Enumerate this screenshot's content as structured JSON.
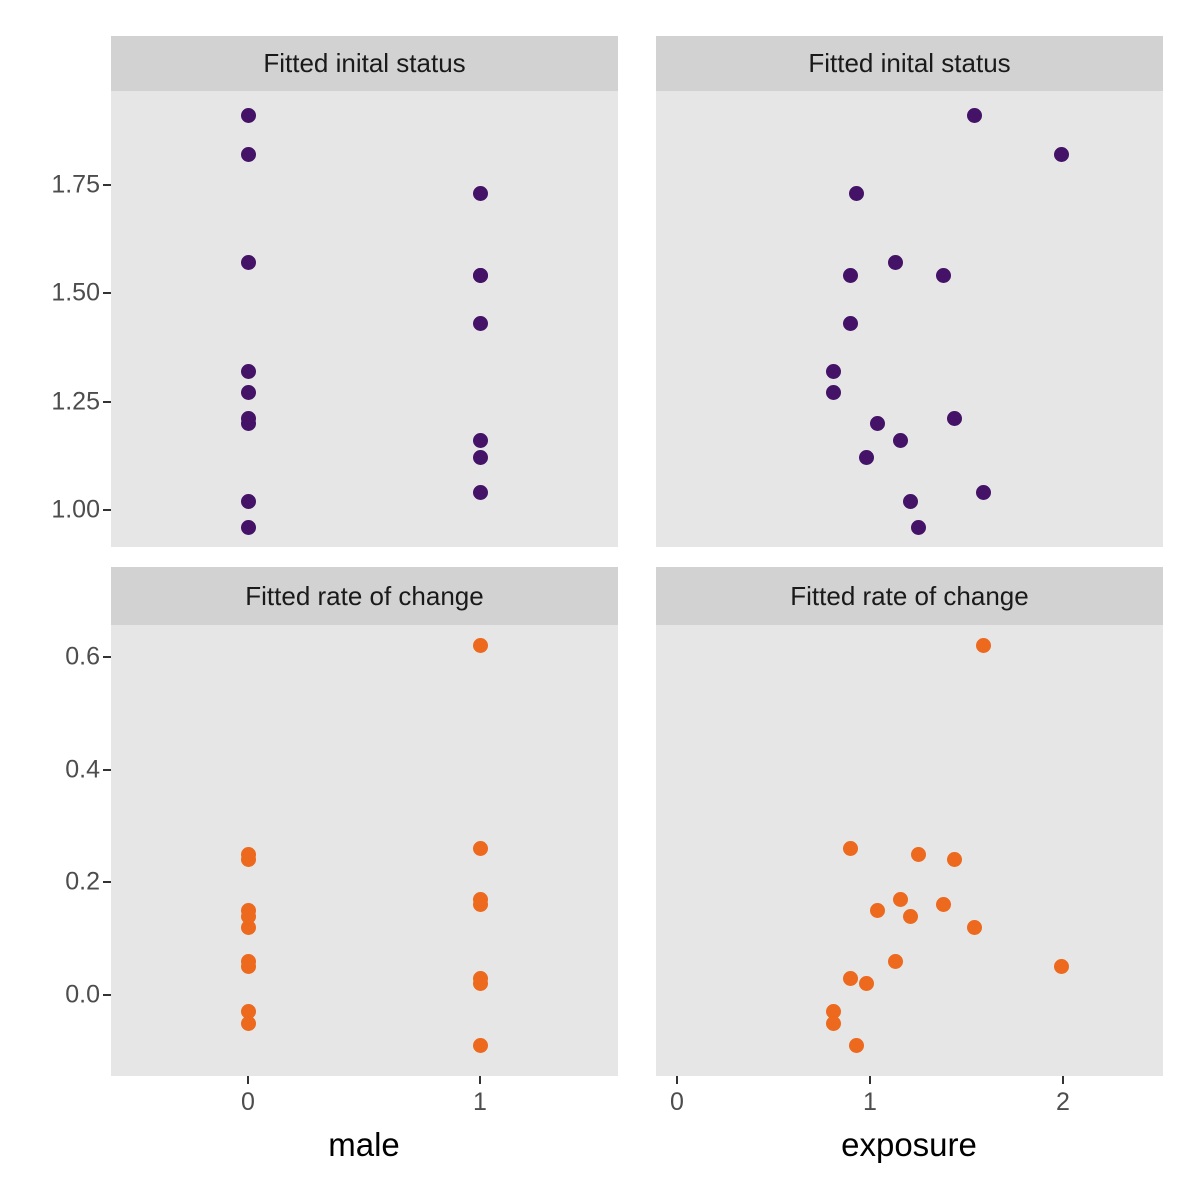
{
  "figure": {
    "background": "#ffffff",
    "panel_background": "#e6e6e6",
    "strip_background": "#d2d2d2",
    "tick_label_color": "#4d4d4d",
    "init_point_color": "#441266",
    "rate_point_color": "#EC691E"
  },
  "chart_data": {
    "type": "scatter",
    "layout": "2x2 facet grid, shared y per row, shared x per column, grid off, no legend",
    "facets": [
      {
        "id": "init-vs-male",
        "title": "Fitted inital status",
        "x_field": "male",
        "y_field": "init_status",
        "color": "#441266",
        "x_axis": "male",
        "y_axis": "init"
      },
      {
        "id": "init-vs-exposure",
        "title": "Fitted inital status",
        "x_field": "exposure",
        "y_field": "init_status",
        "color": "#441266",
        "x_axis": "exposure",
        "y_axis": "init"
      },
      {
        "id": "rate-vs-male",
        "title": "Fitted rate of change",
        "x_field": "male",
        "y_field": "rate",
        "color": "#EC691E",
        "x_axis": "male",
        "y_axis": "rate"
      },
      {
        "id": "rate-vs-exposure",
        "title": "Fitted rate of change",
        "x_field": "exposure",
        "y_field": "rate",
        "color": "#EC691E",
        "x_axis": "exposure",
        "y_axis": "rate"
      }
    ],
    "subjects": [
      {
        "male": 0,
        "exposure": 1.54,
        "init_status": 1.91,
        "rate": 0.12
      },
      {
        "male": 0,
        "exposure": 1.99,
        "init_status": 1.82,
        "rate": 0.05
      },
      {
        "male": 1,
        "exposure": 0.93,
        "init_status": 1.73,
        "rate": -0.09
      },
      {
        "male": 0,
        "exposure": 1.13,
        "init_status": 1.57,
        "rate": 0.06
      },
      {
        "male": 1,
        "exposure": 0.9,
        "init_status": 1.54,
        "rate": 0.03
      },
      {
        "male": 1,
        "exposure": 1.38,
        "init_status": 1.54,
        "rate": 0.16
      },
      {
        "male": 1,
        "exposure": 0.9,
        "init_status": 1.43,
        "rate": 0.26
      },
      {
        "male": 0,
        "exposure": 0.81,
        "init_status": 1.32,
        "rate": -0.03
      },
      {
        "male": 0,
        "exposure": 0.81,
        "init_status": 1.27,
        "rate": -0.05
      },
      {
        "male": 0,
        "exposure": 1.44,
        "init_status": 1.21,
        "rate": 0.24
      },
      {
        "male": 0,
        "exposure": 1.04,
        "init_status": 1.2,
        "rate": 0.15
      },
      {
        "male": 1,
        "exposure": 1.16,
        "init_status": 1.16,
        "rate": 0.17
      },
      {
        "male": 1,
        "exposure": 0.98,
        "init_status": 1.12,
        "rate": 0.02
      },
      {
        "male": 1,
        "exposure": 1.59,
        "init_status": 1.04,
        "rate": 0.62
      },
      {
        "male": 0,
        "exposure": 1.21,
        "init_status": 1.02,
        "rate": 0.14
      },
      {
        "male": 0,
        "exposure": 1.25,
        "init_status": 0.96,
        "rate": 0.25
      }
    ],
    "axes": {
      "y_init": {
        "tick_labels": [
          "1.75",
          "1.50",
          "1.25",
          "1.00"
        ],
        "tick_values": [
          1.75,
          1.5,
          1.25,
          1.0
        ],
        "range": [
          0.915,
          1.965
        ]
      },
      "y_rate": {
        "tick_labels": [
          "0.6",
          "0.4",
          "0.2",
          "0.0"
        ],
        "tick_values": [
          0.6,
          0.4,
          0.2,
          0.0
        ],
        "range": [
          -0.148,
          0.657
        ]
      },
      "x_male": {
        "title": "male",
        "tick_labels": [
          "0",
          "1"
        ],
        "tick_values": [
          0,
          1
        ],
        "range": [
          -0.59,
          1.6
        ]
      },
      "x_exposure": {
        "title": "exposure",
        "tick_labels": [
          "0",
          "1",
          "2"
        ],
        "tick_values": [
          0,
          1,
          2
        ],
        "range": [
          -0.109,
          2.518
        ]
      }
    }
  }
}
